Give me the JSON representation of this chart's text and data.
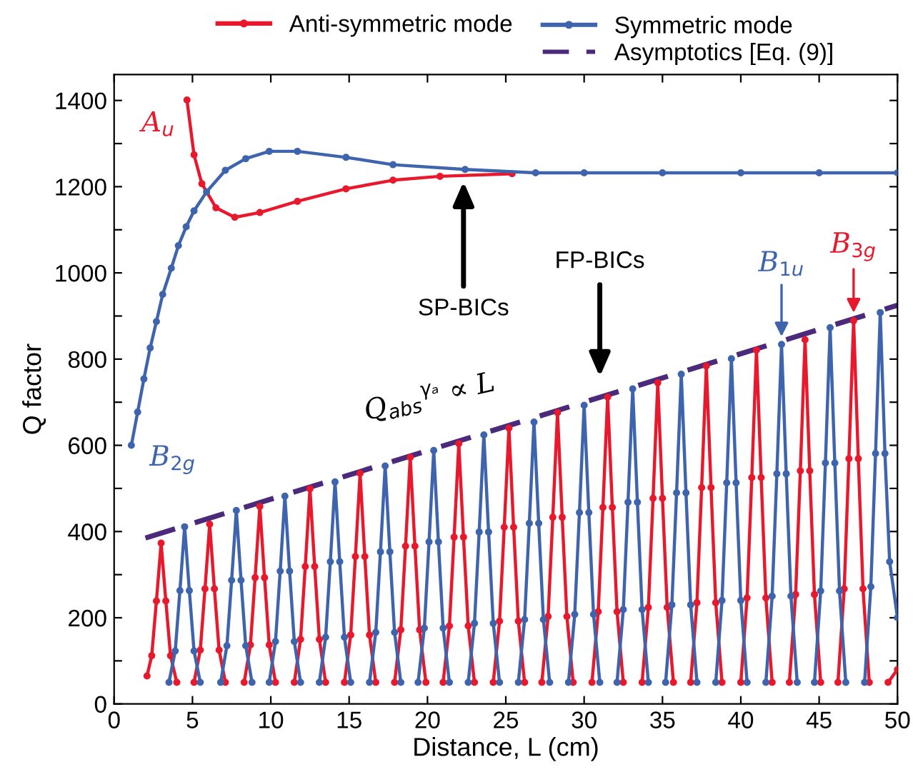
{
  "chart_data": {
    "type": "line",
    "xlabel": "Distance, L (cm)",
    "ylabel": "Q factor",
    "xlim": [
      0,
      50
    ],
    "xticks": [
      0,
      5,
      10,
      15,
      20,
      25,
      30,
      35,
      40,
      45,
      50
    ],
    "ylim": [
      0,
      1460
    ],
    "yticks": [
      0,
      {
        "value": 100,
        "label": null
      },
      200,
      {
        "value": 300,
        "label": null
      },
      400,
      {
        "value": 500,
        "label": null
      },
      600,
      {
        "value": 700,
        "label": null
      },
      800,
      {
        "value": 900,
        "label": null
      },
      1000,
      {
        "value": 1100,
        "label": null
      },
      1200,
      {
        "value": 1300,
        "label": null
      },
      1400
    ],
    "grid": false,
    "legend": "top",
    "marker": "circle",
    "series": [
      {
        "color": "#e8192c",
        "x": [
          4.65,
          5.1,
          5.6,
          6.5,
          7.7,
          9.3,
          11.7,
          14.8,
          17.8,
          20.8,
          25.4
        ],
        "values": [
          1401,
          1274,
          1207,
          1151,
          1129,
          1140,
          1166,
          1195,
          1215,
          1224,
          1230
        ]
      },
      {
        "name": "Anti-symmetric mode",
        "color": "#e8192c",
        "x": [
          2.1,
          2.4,
          2.7,
          3.0,
          3.3,
          3.6,
          4.0
        ],
        "values": [
          65,
          112,
          239,
          373,
          239,
          112,
          50
        ]
      },
      {
        "color": "#e8192c",
        "x": [
          5.1,
          5.5,
          5.8,
          6.1,
          6.4,
          6.7,
          7.1
        ],
        "values": [
          50,
          125,
          267,
          417,
          267,
          125,
          50
        ]
      },
      {
        "color": "#e8192c",
        "x": [
          8.3,
          8.7,
          9.0,
          9.3,
          9.6,
          9.9,
          10.3
        ],
        "values": [
          50,
          137,
          293,
          458,
          293,
          137,
          50
        ]
      },
      {
        "color": "#e8192c",
        "x": [
          11.5,
          11.9,
          12.2,
          12.5,
          12.8,
          13.1,
          13.5
        ],
        "values": [
          50,
          150,
          319,
          499,
          319,
          150,
          50
        ]
      },
      {
        "color": "#e8192c",
        "x": [
          14.7,
          15.1,
          15.4,
          15.7,
          16.0,
          16.3,
          16.7
        ],
        "values": [
          50,
          160,
          342,
          535,
          342,
          160,
          50
        ]
      },
      {
        "color": "#e8192c",
        "x": [
          17.9,
          18.3,
          18.6,
          18.9,
          19.2,
          19.5,
          19.9
        ],
        "values": [
          50,
          172,
          366,
          572,
          366,
          172,
          50
        ]
      },
      {
        "color": "#e8192c",
        "x": [
          21.0,
          21.4,
          21.7,
          22.0,
          22.3,
          22.6,
          23.0
        ],
        "values": [
          50,
          181,
          387,
          604,
          387,
          181,
          50
        ]
      },
      {
        "color": "#e8192c",
        "x": [
          24.2,
          24.6,
          24.9,
          25.2,
          25.5,
          25.8,
          26.2
        ],
        "values": [
          50,
          192,
          410,
          640,
          410,
          192,
          50
        ]
      },
      {
        "color": "#e8192c",
        "x": [
          27.3,
          27.7,
          28.0,
          28.3,
          28.6,
          28.9,
          29.3
        ],
        "values": [
          50,
          203,
          433,
          676,
          433,
          203,
          50
        ]
      },
      {
        "color": "#e8192c",
        "x": [
          30.5,
          30.9,
          31.2,
          31.5,
          31.8,
          32.1,
          32.5
        ],
        "values": [
          50,
          214,
          456,
          712,
          456,
          214,
          50
        ]
      },
      {
        "color": "#e8192c",
        "x": [
          33.7,
          34.1,
          34.4,
          34.7,
          35.0,
          35.3,
          35.7
        ],
        "values": [
          50,
          224,
          477,
          745,
          477,
          224,
          50
        ]
      },
      {
        "color": "#e8192c",
        "x": [
          36.8,
          37.2,
          37.5,
          37.8,
          38.1,
          38.4,
          38.8
        ],
        "values": [
          50,
          235,
          502,
          784,
          502,
          235,
          50
        ]
      },
      {
        "color": "#e8192c",
        "x": [
          40.0,
          40.4,
          40.7,
          41.0,
          41.3,
          41.6,
          42.0
        ],
        "values": [
          50,
          246,
          525,
          821,
          525,
          246,
          50
        ]
      },
      {
        "color": "#e8192c",
        "x": [
          43.1,
          43.5,
          43.8,
          44.1,
          44.4,
          44.7,
          45.1
        ],
        "values": [
          50,
          254,
          541,
          845,
          541,
          254,
          50
        ]
      },
      {
        "color": "#e8192c",
        "x": [
          46.2,
          46.6,
          46.9,
          47.2,
          47.5,
          47.8,
          48.2
        ],
        "values": [
          50,
          267,
          569,
          889,
          569,
          267,
          50
        ]
      },
      {
        "color": "#e8192c",
        "x": [
          49.4,
          50.0
        ],
        "values": [
          50,
          80
        ]
      },
      {
        "color": "#3e64ad",
        "x": [
          1.1,
          1.5,
          1.9,
          2.3,
          2.7,
          3.1,
          3.65,
          4.1,
          4.6,
          5.1,
          5.9,
          7.1,
          8.4,
          9.9,
          11.7,
          14.8,
          17.8,
          22.4,
          26.9,
          30,
          35,
          40,
          45,
          50
        ],
        "values": [
          600,
          677,
          754,
          826,
          887,
          950,
          1011,
          1063,
          1107,
          1144,
          1188,
          1238,
          1265,
          1282,
          1282,
          1268,
          1251,
          1240,
          1232,
          1232,
          1232,
          1232,
          1232,
          1232
        ]
      },
      {
        "name": "Symmetric mode",
        "color": "#3e64ad",
        "x": [
          3.5,
          3.9,
          4.2,
          4.5,
          4.8,
          5.1,
          5.5
        ],
        "values": [
          50,
          123,
          263,
          411,
          263,
          123,
          50
        ]
      },
      {
        "color": "#3e64ad",
        "x": [
          6.8,
          7.2,
          7.5,
          7.8,
          8.1,
          8.4,
          8.8
        ],
        "values": [
          50,
          135,
          287,
          449,
          287,
          135,
          50
        ]
      },
      {
        "color": "#3e64ad",
        "x": [
          9.9,
          10.3,
          10.6,
          10.9,
          11.2,
          11.5,
          11.9
        ],
        "values": [
          50,
          145,
          308,
          482,
          308,
          145,
          50
        ]
      },
      {
        "color": "#3e64ad",
        "x": [
          13.1,
          13.5,
          13.8,
          14.1,
          14.4,
          14.7,
          15.1
        ],
        "values": [
          50,
          155,
          330,
          515,
          330,
          155,
          50
        ]
      },
      {
        "color": "#3e64ad",
        "x": [
          16.3,
          16.7,
          17.0,
          17.3,
          17.6,
          17.9,
          18.3
        ],
        "values": [
          50,
          166,
          353,
          552,
          353,
          166,
          50
        ]
      },
      {
        "color": "#3e64ad",
        "x": [
          19.4,
          19.8,
          20.1,
          20.4,
          20.7,
          21.0,
          21.4
        ],
        "values": [
          50,
          176,
          376,
          588,
          376,
          176,
          50
        ]
      },
      {
        "color": "#3e64ad",
        "x": [
          22.6,
          23.0,
          23.3,
          23.6,
          23.9,
          24.2,
          24.6
        ],
        "values": [
          50,
          187,
          399,
          624,
          399,
          187,
          50
        ]
      },
      {
        "color": "#3e64ad",
        "x": [
          25.8,
          26.2,
          26.5,
          26.8,
          27.1,
          27.4,
          27.8
        ],
        "values": [
          50,
          196,
          419,
          654,
          419,
          196,
          50
        ]
      },
      {
        "color": "#3e64ad",
        "x": [
          29.0,
          29.4,
          29.7,
          30.0,
          30.3,
          30.6,
          31.0
        ],
        "values": [
          50,
          208,
          444,
          693,
          444,
          208,
          50
        ]
      },
      {
        "color": "#3e64ad",
        "x": [
          32.1,
          32.5,
          32.8,
          33.1,
          33.4,
          33.7,
          34.1
        ],
        "values": [
          50,
          219,
          468,
          731,
          468,
          219,
          50
        ]
      },
      {
        "color": "#3e64ad",
        "x": [
          35.2,
          35.6,
          35.9,
          36.2,
          36.5,
          36.8,
          37.2
        ],
        "values": [
          50,
          230,
          490,
          765,
          490,
          230,
          50
        ]
      },
      {
        "color": "#3e64ad",
        "x": [
          38.4,
          38.8,
          39.1,
          39.4,
          39.7,
          40.0,
          40.4
        ],
        "values": [
          50,
          240,
          513,
          801,
          513,
          240,
          50
        ]
      },
      {
        "color": "#3e64ad",
        "x": [
          41.6,
          42.0,
          42.3,
          42.6,
          42.9,
          43.2,
          43.6
        ],
        "values": [
          50,
          250,
          534,
          834,
          534,
          250,
          50
        ]
      },
      {
        "color": "#3e64ad",
        "x": [
          44.7,
          45.1,
          45.4,
          45.7,
          46.0,
          46.3,
          46.7
        ],
        "values": [
          50,
          262,
          559,
          873,
          559,
          262,
          50
        ]
      },
      {
        "color": "#3e64ad",
        "x": [
          47.9,
          48.3,
          48.6,
          48.9,
          49.2,
          49.5,
          50.0
        ],
        "values": [
          50,
          272,
          581,
          908,
          581,
          330,
          200
        ]
      },
      {
        "name": "Asymptotics [Eq. (9)]",
        "color": "#4b2a7b",
        "marker": "none",
        "line_style": "dashed",
        "x": [
          2,
          50
        ],
        "values": [
          385,
          925
        ]
      }
    ],
    "annotations": [
      {
        "text": "A$_{u}$",
        "x": 4.65,
        "y": 1401
      },
      {
        "text": "B$_{2g}$",
        "x": 1.5,
        "y": 677
      },
      "SP-BICs",
      "FP-BICs",
      {
        "text": "B$_{1u}$",
        "x": 42.6,
        "y": 834
      },
      {
        "text": "B$_{3g}$",
        "x": 47.2,
        "y": 889
      },
      {
        "text": "Q$_{abs}$$^{γₐ}$ ∝ L",
        "x": 26.0,
        "y": 655
      }
    ]
  }
}
